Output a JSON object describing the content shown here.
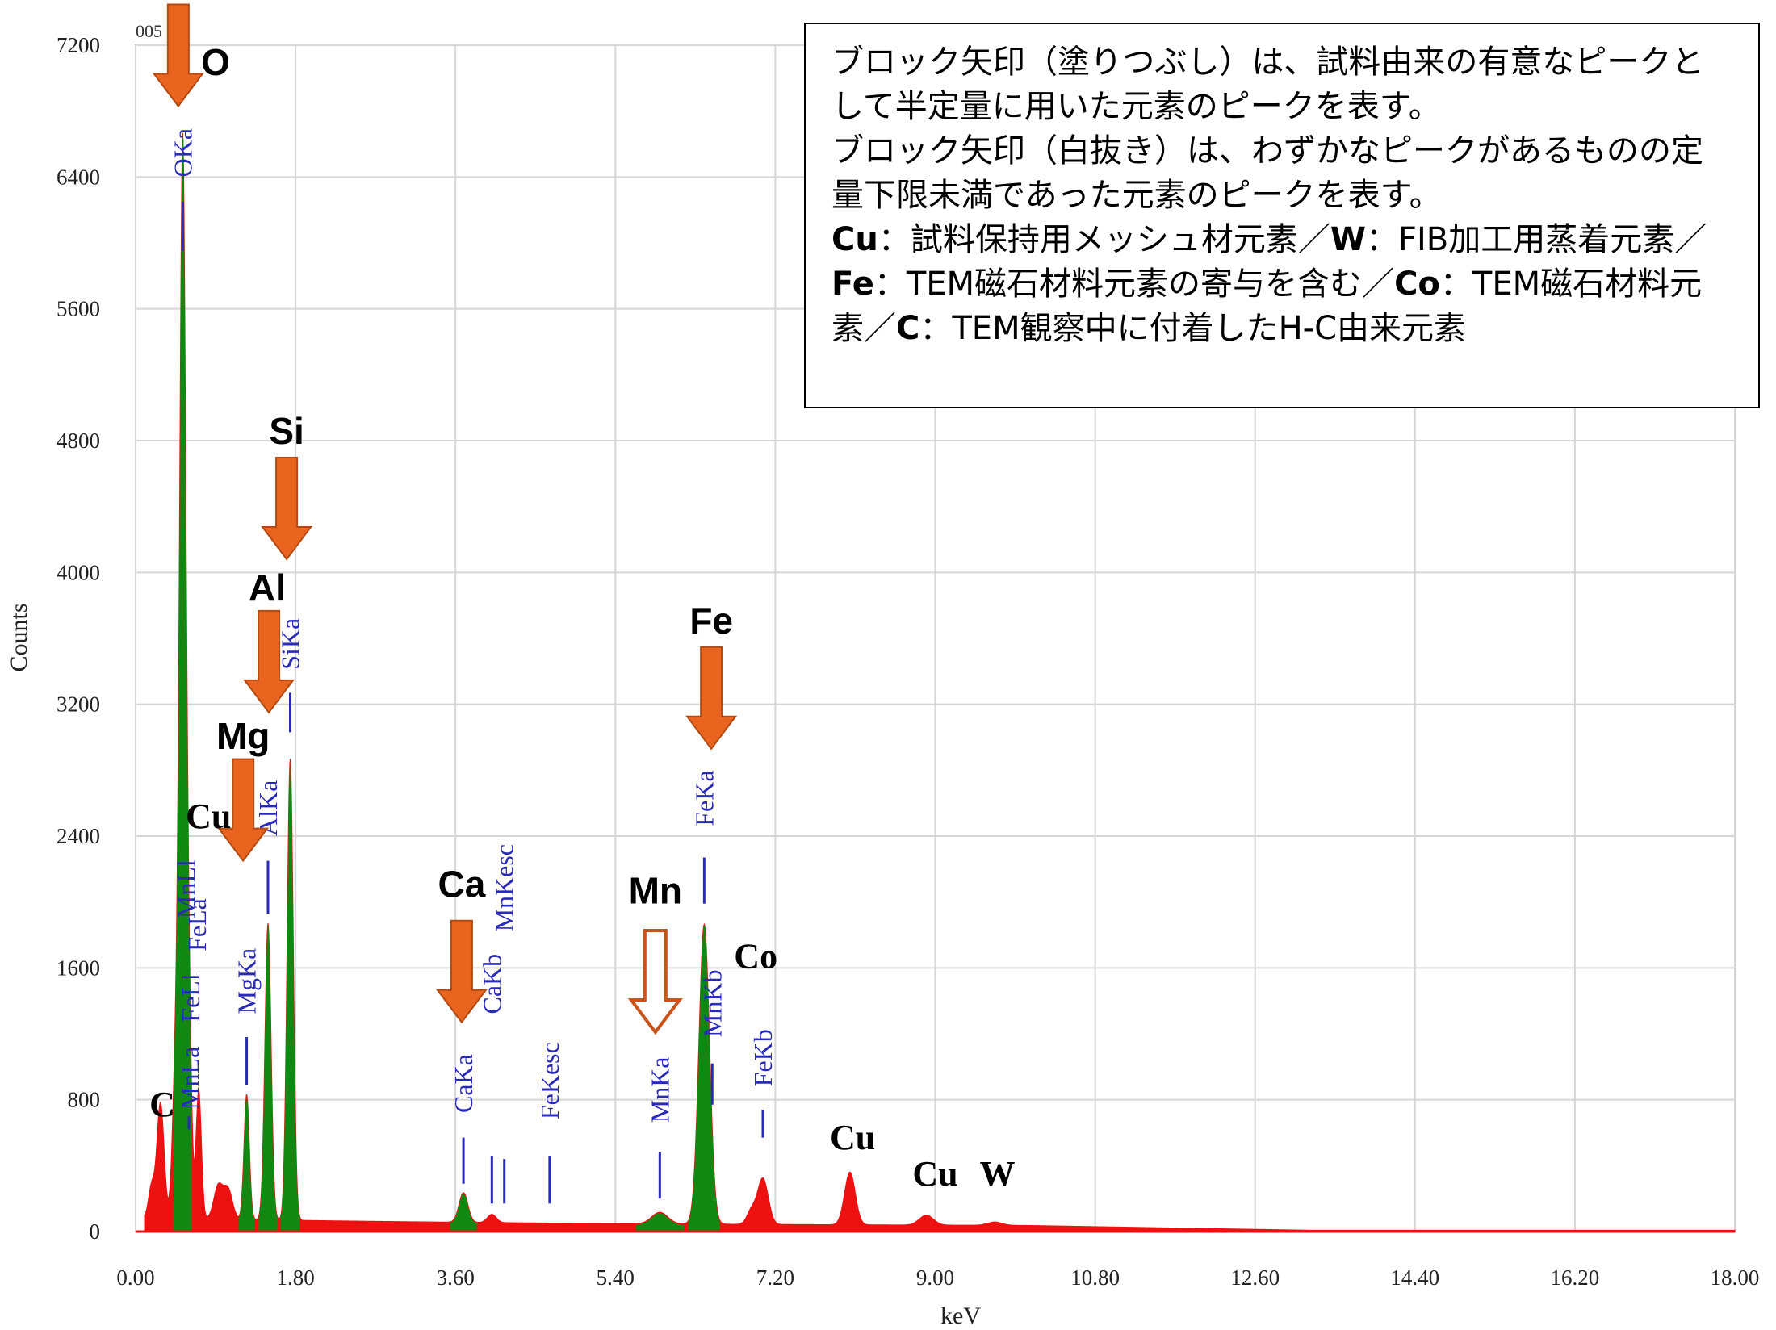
{
  "chart_data": {
    "type": "area",
    "xlabel": "keV",
    "ylabel": "Counts",
    "xlim": [
      0,
      18
    ],
    "ylim": [
      0,
      7200
    ],
    "x_ticks": [
      "0.00",
      "1.80",
      "3.60",
      "5.40",
      "7.20",
      "9.00",
      "10.80",
      "12.60",
      "14.40",
      "16.20",
      "18.00"
    ],
    "y_ticks": [
      "0",
      "800",
      "1600",
      "2400",
      "3200",
      "4000",
      "4800",
      "5600",
      "6400",
      "7200"
    ],
    "top_left_fragment": "005",
    "series_colors": {
      "spectrum": "#ee1111",
      "roi": "#118811"
    },
    "spectrum_peaks": [
      {
        "energy": 0.18,
        "counts": 190,
        "width": 0.035,
        "highlight": false
      },
      {
        "energy": 0.28,
        "counts": 700,
        "width": 0.04,
        "highlight": false
      },
      {
        "energy": 0.45,
        "counts": 900,
        "width": 0.035,
        "highlight": false
      },
      {
        "energy": 0.53,
        "counts": 6450,
        "width": 0.035,
        "highlight": true
      },
      {
        "energy": 0.6,
        "counts": 1100,
        "width": 0.03,
        "highlight": false
      },
      {
        "energy": 0.71,
        "counts": 780,
        "width": 0.03,
        "highlight": false
      },
      {
        "energy": 0.93,
        "counts": 200,
        "width": 0.05,
        "highlight": false
      },
      {
        "energy": 1.04,
        "counts": 180,
        "width": 0.05,
        "highlight": false
      },
      {
        "energy": 1.25,
        "counts": 760,
        "width": 0.03,
        "highlight": true
      },
      {
        "energy": 1.49,
        "counts": 1800,
        "width": 0.035,
        "highlight": true
      },
      {
        "energy": 1.74,
        "counts": 2800,
        "width": 0.035,
        "highlight": true
      },
      {
        "energy": 3.69,
        "counts": 180,
        "width": 0.05,
        "highlight": true
      },
      {
        "energy": 4.01,
        "counts": 50,
        "width": 0.05,
        "highlight": false
      },
      {
        "energy": 5.9,
        "counts": 70,
        "width": 0.09,
        "highlight": true
      },
      {
        "energy": 6.4,
        "counts": 1820,
        "width": 0.06,
        "highlight": true
      },
      {
        "energy": 6.93,
        "counts": 80,
        "width": 0.05,
        "highlight": false
      },
      {
        "energy": 7.06,
        "counts": 280,
        "width": 0.06,
        "highlight": false
      },
      {
        "energy": 8.04,
        "counts": 320,
        "width": 0.06,
        "highlight": false
      },
      {
        "energy": 8.9,
        "counts": 60,
        "width": 0.08,
        "highlight": false
      },
      {
        "energy": 9.67,
        "counts": 20,
        "width": 0.08,
        "highlight": false
      }
    ],
    "peak_labels": [
      {
        "text": "OKa",
        "energy": 0.53,
        "counts": 6400
      },
      {
        "text": "MnLa",
        "energy": 0.61,
        "counts": 740
      },
      {
        "text": "FeLl",
        "energy": 0.62,
        "counts": 1270
      },
      {
        "text": "FeLa",
        "energy": 0.69,
        "counts": 1700
      },
      {
        "text": "MnLl",
        "energy": 0.57,
        "counts": 1900
      },
      {
        "text": "MgKa",
        "energy": 1.25,
        "counts": 1320
      },
      {
        "text": "AlKa",
        "energy": 1.49,
        "counts": 2400
      },
      {
        "text": "SiKa",
        "energy": 1.74,
        "counts": 3410
      },
      {
        "text": "CaKa",
        "energy": 3.69,
        "counts": 720
      },
      {
        "text": "CaKb",
        "energy": 4.01,
        "counts": 1320
      },
      {
        "text": "MnKesc",
        "energy": 4.15,
        "counts": 1820
      },
      {
        "text": "FeKesc",
        "energy": 4.66,
        "counts": 680
      },
      {
        "text": "MnKa",
        "energy": 5.9,
        "counts": 660
      },
      {
        "text": "FeKa",
        "energy": 6.4,
        "counts": 2460
      },
      {
        "text": "MnKb",
        "energy": 6.49,
        "counts": 1180
      },
      {
        "text": "FeKb",
        "energy": 7.06,
        "counts": 880
      }
    ],
    "marker_lines": [
      {
        "energy": 0.53,
        "from": 5950,
        "to": 6250
      },
      {
        "energy": 0.6,
        "from": 620,
        "to": 700
      },
      {
        "energy": 1.25,
        "from": 890,
        "to": 1180
      },
      {
        "energy": 1.49,
        "from": 1930,
        "to": 2250
      },
      {
        "energy": 1.74,
        "from": 3030,
        "to": 3270
      },
      {
        "energy": 3.69,
        "from": 290,
        "to": 570
      },
      {
        "energy": 4.01,
        "from": 170,
        "to": 460
      },
      {
        "energy": 4.15,
        "from": 170,
        "to": 440
      },
      {
        "energy": 4.66,
        "from": 170,
        "to": 460
      },
      {
        "energy": 5.9,
        "from": 200,
        "to": 480
      },
      {
        "energy": 6.4,
        "from": 1990,
        "to": 2270
      },
      {
        "energy": 6.49,
        "from": 770,
        "to": 1020
      },
      {
        "energy": 7.06,
        "from": 570,
        "to": 740
      }
    ],
    "element_arrows": [
      {
        "element": "O",
        "energy": 0.48,
        "tip": 6830,
        "filled": true,
        "label_energy": 0.9,
        "label_counts": 7020
      },
      {
        "element": "Si",
        "energy": 1.7,
        "tip": 4080,
        "filled": true,
        "label_energy": 1.7,
        "label_counts": 4780
      },
      {
        "element": "Al",
        "energy": 1.5,
        "tip": 3150,
        "filled": true,
        "label_energy": 1.48,
        "label_counts": 3830
      },
      {
        "element": "Mg",
        "energy": 1.21,
        "tip": 2250,
        "filled": true,
        "label_energy": 1.21,
        "label_counts": 2930
      },
      {
        "element": "Ca",
        "energy": 3.67,
        "tip": 1270,
        "filled": true,
        "label_energy": 3.67,
        "label_counts": 2030
      },
      {
        "element": "Fe",
        "energy": 6.48,
        "tip": 2930,
        "filled": true,
        "label_energy": 6.48,
        "label_counts": 3630
      },
      {
        "element": "Mn",
        "energy": 5.85,
        "tip": 1210,
        "filled": false,
        "label_energy": 5.85,
        "label_counts": 1990
      }
    ],
    "element_labels": [
      {
        "text": "Cu",
        "energy": 0.82,
        "counts": 2450
      },
      {
        "text": "C",
        "energy": 0.3,
        "counts": 700
      },
      {
        "text": "Co",
        "energy": 6.98,
        "counts": 1600
      },
      {
        "text": "Cu",
        "energy": 8.07,
        "counts": 500
      },
      {
        "text": "Cu",
        "energy": 9.0,
        "counts": 280
      },
      {
        "text": "W",
        "energy": 9.7,
        "counts": 280
      }
    ]
  },
  "note": {
    "line1": "ブロック矢印（塗りつぶし）は、試料由来の有意なピークとして半定量に用いた元素のピークを表す。",
    "line2": "ブロック矢印（白抜き）は、わずかなピークがあるものの定量下限未満であった元素のピークを表す。",
    "line3": [
      {
        "b": "Cu",
        "t": "：試料保持用メッシュ材元素／"
      },
      {
        "b": "W",
        "t": "：FIB加工用蒸着元素／"
      },
      {
        "b": "Fe",
        "t": "：TEM磁石材料元素の寄与を含む／"
      },
      {
        "b": "Co",
        "t": "：TEM磁石材料元素／"
      },
      {
        "b": "C",
        "t": "：TEM観察中に付着したH-C由来元素"
      }
    ]
  }
}
